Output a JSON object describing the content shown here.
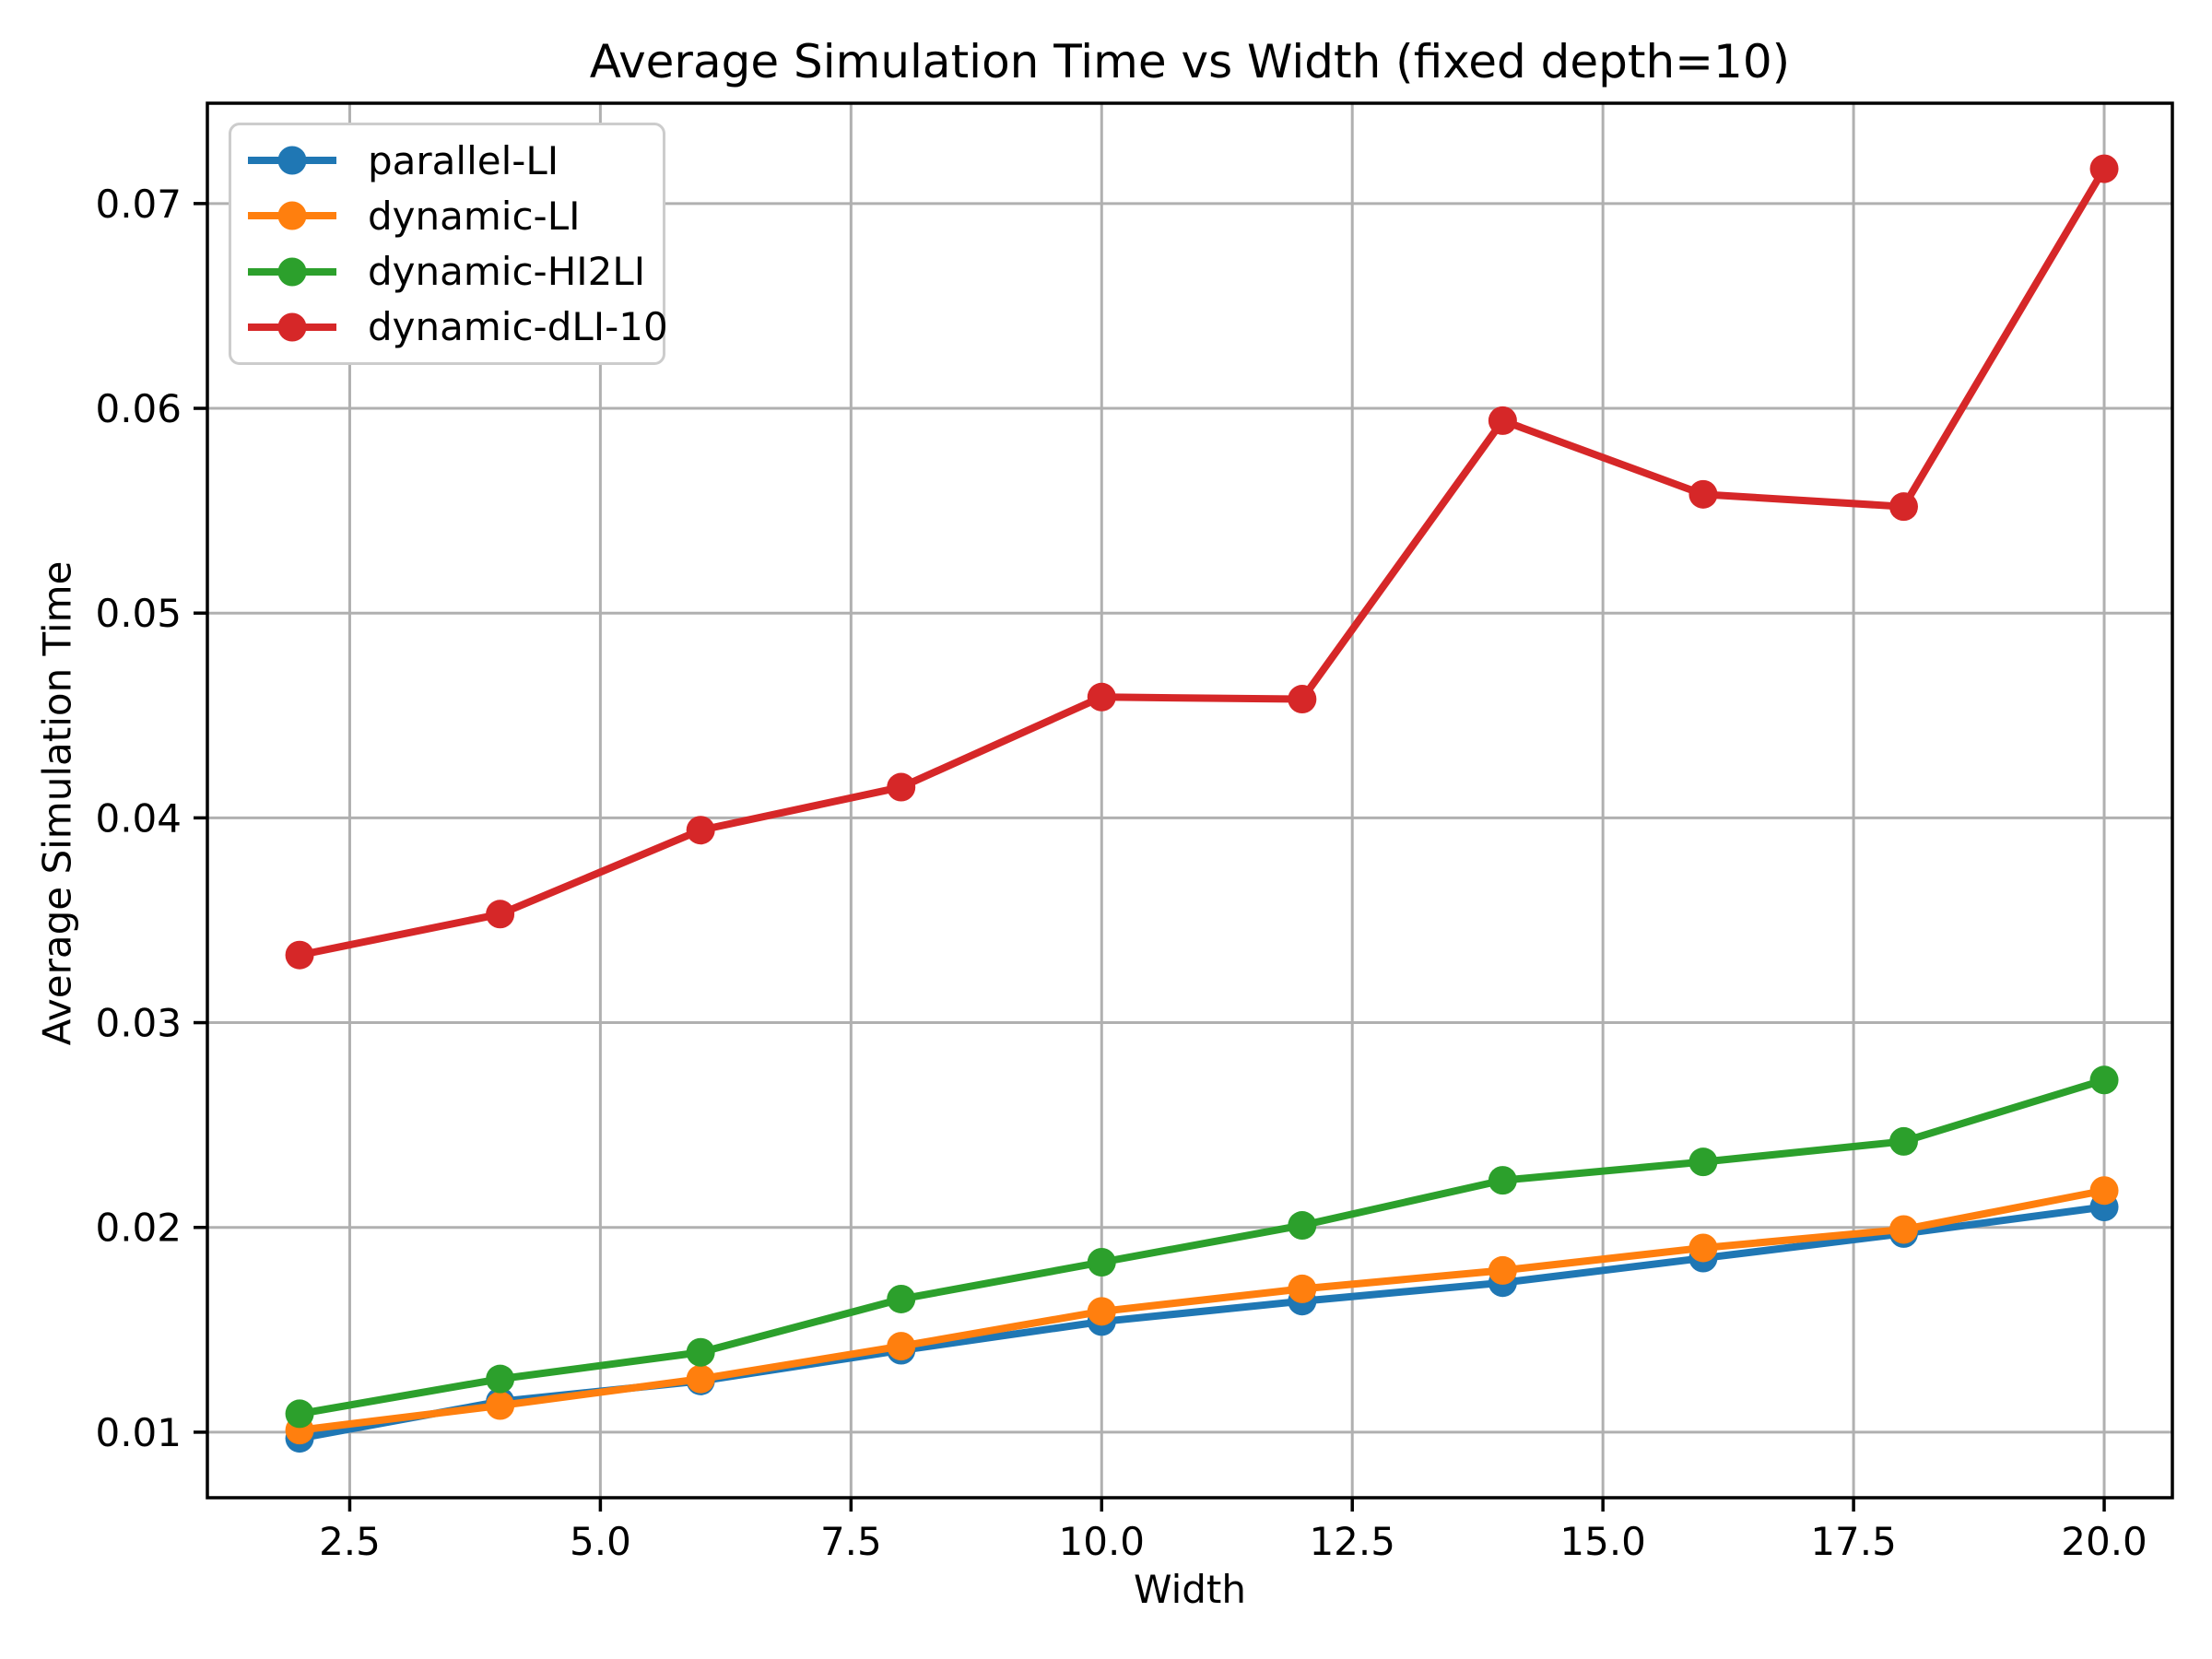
{
  "chart_data": {
    "type": "line",
    "title": "Average Simulation Time vs Width (fixed depth=10)",
    "xlabel": "Width",
    "ylabel": "Average Simulation Time",
    "x": [
      2,
      4,
      6,
      8,
      10,
      12,
      14,
      16,
      18,
      20
    ],
    "series": [
      {
        "name": "parallel-LI",
        "color": "#1f77b4",
        "values": [
          0.0097,
          0.0115,
          0.0125,
          0.014,
          0.0154,
          0.0164,
          0.0173,
          0.0185,
          0.0197,
          0.021
        ]
      },
      {
        "name": "dynamic-LI",
        "color": "#ff7f0e",
        "values": [
          0.0101,
          0.0113,
          0.0126,
          0.0142,
          0.0159,
          0.017,
          0.0179,
          0.019,
          0.0199,
          0.0218
        ]
      },
      {
        "name": "dynamic-HI2LI",
        "color": "#2ca02c",
        "values": [
          0.0109,
          0.0126,
          0.0139,
          0.0165,
          0.0183,
          0.0201,
          0.0223,
          0.0232,
          0.0242,
          0.0272
        ]
      },
      {
        "name": "dynamic-dLI-10",
        "color": "#d62728",
        "values": [
          0.0333,
          0.0353,
          0.0394,
          0.0415,
          0.0459,
          0.0458,
          0.0594,
          0.0558,
          0.0552,
          0.0717
        ]
      }
    ],
    "x_ticks": [
      2.5,
      5.0,
      7.5,
      10.0,
      12.5,
      15.0,
      17.5,
      20.0
    ],
    "x_tick_labels": [
      "2.5",
      "5.0",
      "7.5",
      "10.0",
      "12.5",
      "15.0",
      "17.5",
      "20.0"
    ],
    "y_ticks": [
      0.01,
      0.02,
      0.03,
      0.04,
      0.05,
      0.06,
      0.07
    ],
    "y_tick_labels": [
      "0.01",
      "0.02",
      "0.03",
      "0.04",
      "0.05",
      "0.06",
      "0.07"
    ],
    "xlim": [
      1.08,
      20.68
    ],
    "ylim": [
      0.0068,
      0.0749
    ],
    "grid": true,
    "grid_color": "#b0b0b0",
    "axis_color": "#000000",
    "background": "#ffffff",
    "legend_position": "upper left"
  }
}
